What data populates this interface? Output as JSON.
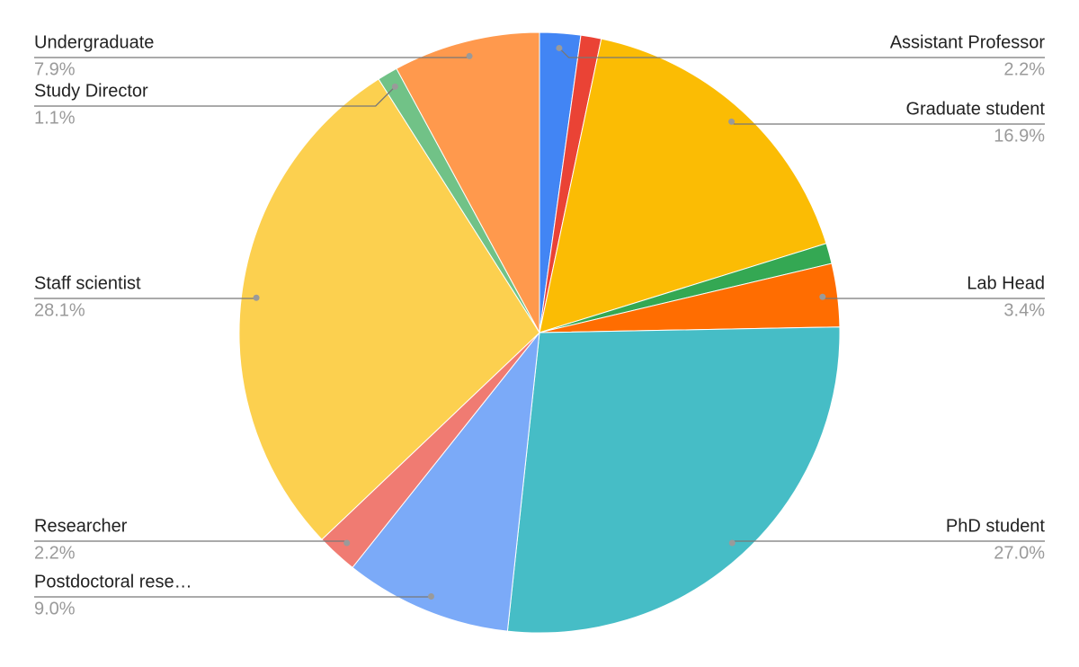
{
  "chart_data": {
    "type": "pie",
    "categories": [
      "Assistant Professor",
      null,
      "Graduate student",
      null,
      "Lab Head",
      "PhD student",
      "Postdoctoral rese…",
      "Researcher",
      "Staff scientist",
      "Study Director",
      "Undergraduate"
    ],
    "values": [
      2.2,
      1.1,
      16.9,
      1.1,
      3.4,
      27.0,
      9.0,
      2.2,
      28.1,
      1.1,
      7.9
    ],
    "value_labels": [
      "2.2%",
      null,
      "16.9%",
      null,
      "3.4%",
      "27.0%",
      "9.0%",
      "2.2%",
      "28.1%",
      "1.1%",
      "7.9%"
    ],
    "colors": [
      "#4285f4",
      "#ea4335",
      "#fbbc04",
      "#34a853",
      "#ff6d01",
      "#46bdc6",
      "#7baaf8",
      "#f07b72",
      "#fcd04f",
      "#71c287",
      "#ff994d"
    ]
  }
}
